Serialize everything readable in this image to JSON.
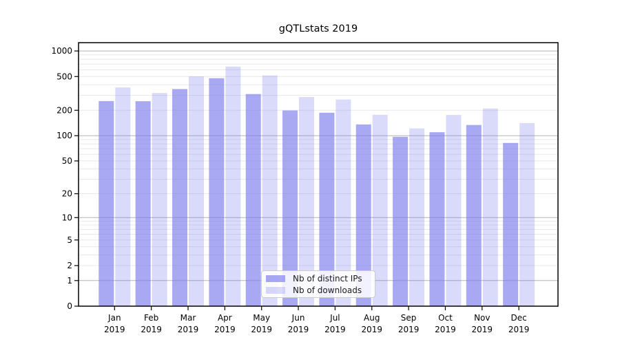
{
  "title": "gQTLstats 2019",
  "chart_data": {
    "type": "bar",
    "title": "gQTLstats 2019",
    "y_scale": "log1p",
    "categories": [
      "Jan",
      "Feb",
      "Mar",
      "Apr",
      "May",
      "Jun",
      "Jul",
      "Aug",
      "Sep",
      "Oct",
      "Nov",
      "Dec"
    ],
    "x_tick_year": "2019",
    "series": [
      {
        "name": "Nb of distinct IPs",
        "color": "#7a7aed",
        "opacity": 0.65,
        "values": [
          257,
          256,
          356,
          478,
          311,
          199,
          187,
          136,
          97,
          110,
          134,
          82
        ]
      },
      {
        "name": "Nb of downloads",
        "color": "#7a7aed",
        "opacity": 0.28,
        "values": [
          372,
          320,
          503,
          655,
          515,
          287,
          268,
          177,
          122,
          176,
          210,
          141
        ]
      }
    ],
    "y_ticks": [
      0,
      1,
      2,
      5,
      10,
      20,
      50,
      100,
      200,
      500,
      1000
    ],
    "y_major_gridlines": [
      1,
      10,
      100,
      1000
    ],
    "ylim": [
      0,
      1253
    ],
    "grid": true,
    "legend_position": "bottom-center"
  },
  "colors": {
    "axis": "#000000",
    "major_grid": "#b3b3b3",
    "minor_grid": "#e8e8e8",
    "bar_base": "#7a7aed"
  }
}
